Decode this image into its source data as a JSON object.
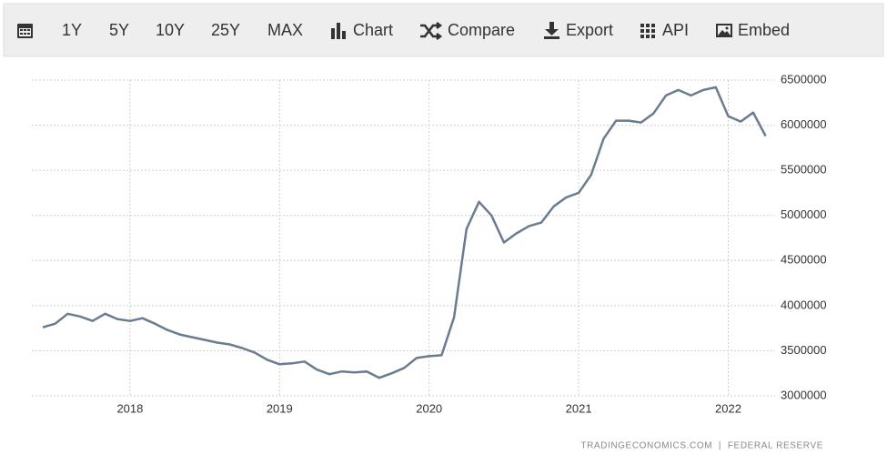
{
  "toolbar": [
    "1Y",
    "5Y",
    "10Y",
    "25Y",
    "MAX",
    "Chart",
    "Compare",
    "Export",
    "API",
    "Embed"
  ],
  "chart_data": {
    "type": "line",
    "source": "TRADINGECONOMICS.COM  |  FEDERAL RESERVE",
    "categories": [
      null,
      null,
      null,
      null,
      null,
      null,
      null,
      "2018",
      null,
      null,
      null,
      null,
      null,
      null,
      null,
      null,
      null,
      null,
      null,
      "2019",
      null,
      null,
      null,
      null,
      null,
      null,
      null,
      null,
      null,
      null,
      null,
      "2020",
      null,
      null,
      null,
      null,
      null,
      null,
      null,
      null,
      null,
      null,
      null,
      "2021",
      null,
      null,
      null,
      null,
      null,
      null,
      null,
      null,
      null,
      null,
      null,
      "2022",
      null,
      null,
      null
    ],
    "values": [
      3760000,
      3800000,
      3910000,
      3880000,
      3830000,
      3910000,
      3850000,
      3830000,
      3860000,
      3800000,
      3730000,
      3680000,
      3650000,
      3620000,
      3590000,
      3570000,
      3530000,
      3480000,
      3400000,
      3350000,
      3360000,
      3380000,
      3290000,
      3240000,
      3270000,
      3260000,
      3270000,
      3200000,
      3250000,
      3310000,
      3420000,
      3440000,
      3450000,
      3870000,
      4850000,
      5150000,
      5000000,
      4700000,
      4800000,
      4880000,
      4920000,
      5100000,
      5200000,
      5250000,
      5450000,
      5850000,
      6050000,
      6050000,
      6030000,
      6130000,
      6330000,
      6390000,
      6330000,
      6390000,
      6420000,
      6100000,
      6040000,
      6140000,
      5880000
    ],
    "color": "#6b7b90",
    "ylim": [
      3000000,
      6500000
    ],
    "yticks": [
      3000000,
      3500000,
      4000000,
      4500000,
      5000000,
      5500000,
      6000000,
      6500000
    ],
    "grid": true
  }
}
